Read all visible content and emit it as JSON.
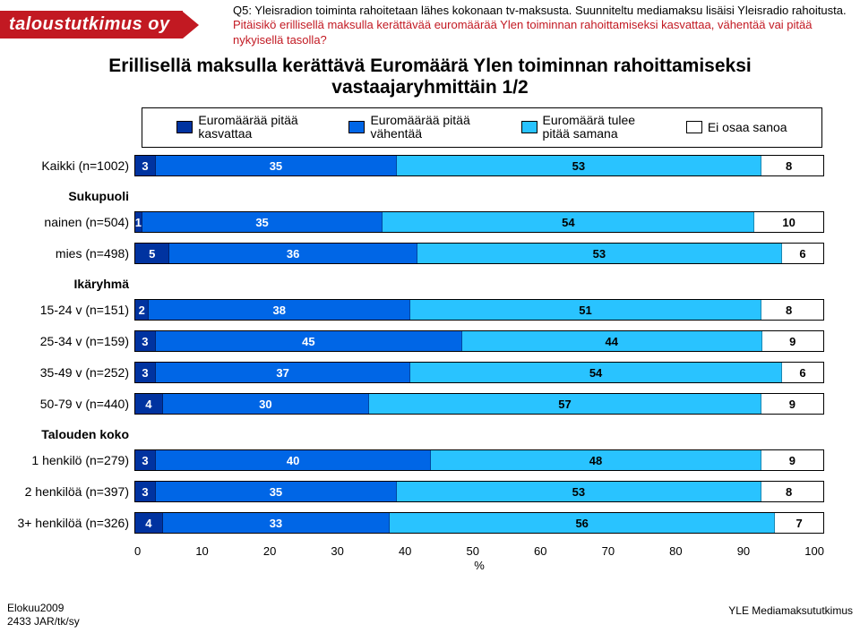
{
  "logo": {
    "text": "taloustutkimus oy"
  },
  "header": {
    "line1": "Q5: Yleisradion toiminta rahoitetaan lähes kokonaan tv-maksusta. Suunniteltu mediamaksu lisäisi Yleisradio rahoitusta.",
    "line2": "Pitäisikö erillisellä maksulla kerättävää euromäärää Ylen toiminnan rahoittamiseksi kasvattaa, vähentää vai pitää nykyisellä tasolla?"
  },
  "title_line1": "Erillisellä maksulla kerättävä Euromäärä Ylen toiminnan rahoittamiseksi",
  "title_line2": "vastaajaryhmittäin 1/2",
  "legend": [
    {
      "label": "Euromäärää pitää\nkasvattaa",
      "color": "#0033a0"
    },
    {
      "label": "Euromäärää pitää\nvähentää",
      "color": "#0066e6"
    },
    {
      "label": "Euromäärä tulee\npitää samana",
      "color": "#29c3ff"
    },
    {
      "label": "Ei osaa sanoa",
      "color": "#ffffff"
    }
  ],
  "chart": {
    "type": "stacked-bar-horizontal",
    "xmax": 100,
    "xtick_step": 10,
    "xlabel": "%",
    "segment_colors": [
      "#0033a0",
      "#0066e6",
      "#29c3ff",
      "#ffffff"
    ],
    "segment_text_colors": [
      "#ffffff",
      "#ffffff",
      "#000000",
      "#000000"
    ],
    "groups": [
      {
        "group_label": "",
        "rows": [
          {
            "label": "Kaikki (n=1002)",
            "values": [
              3,
              35,
              53,
              8
            ]
          }
        ]
      },
      {
        "group_label": "Sukupuoli",
        "rows": [
          {
            "label": "nainen (n=504)",
            "values": [
              1,
              35,
              54,
              10
            ]
          },
          {
            "label": "mies (n=498)",
            "values": [
              5,
              36,
              53,
              6
            ]
          }
        ]
      },
      {
        "group_label": "Ikäryhmä",
        "rows": [
          {
            "label": "15-24 v (n=151)",
            "values": [
              2,
              38,
              51,
              8
            ]
          },
          {
            "label": "25-34 v (n=159)",
            "values": [
              3,
              45,
              44,
              9
            ]
          },
          {
            "label": "35-49 v (n=252)",
            "values": [
              3,
              37,
              54,
              6
            ]
          },
          {
            "label": "50-79 v (n=440)",
            "values": [
              4,
              30,
              57,
              9
            ]
          }
        ]
      },
      {
        "group_label": "Talouden koko",
        "rows": [
          {
            "label": "1 henkilö (n=279)",
            "values": [
              3,
              40,
              48,
              9
            ]
          },
          {
            "label": "2 henkilöä (n=397)",
            "values": [
              3,
              35,
              53,
              8
            ]
          },
          {
            "label": "3+ henkilöä (n=326)",
            "values": [
              4,
              33,
              56,
              7
            ]
          }
        ]
      }
    ]
  },
  "footer": {
    "left_line1": "Elokuu2009",
    "left_line2": "2433 JAR/tk/sy",
    "right": "YLE Mediamaksututkimus"
  }
}
